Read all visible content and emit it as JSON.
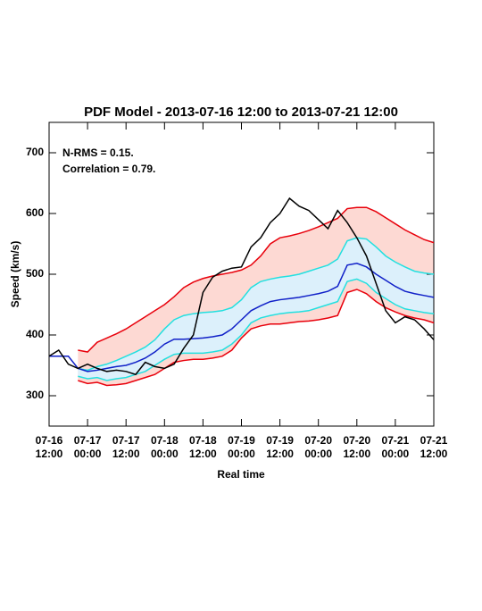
{
  "chart_data": {
    "type": "line",
    "title": "PDF Model - 2013-07-16 12:00 to 2013-07-21 12:00",
    "y_label": "Speed (km/s)",
    "x_label": "Real time",
    "annotations": [
      "N-RMS = 0.15.",
      "Correlation = 0.79."
    ],
    "x": [
      0,
      3,
      6,
      9,
      12,
      15,
      18,
      21,
      24,
      27,
      30,
      33,
      36,
      39,
      42,
      45,
      48,
      51,
      54,
      57,
      60,
      63,
      66,
      69,
      72,
      75,
      78,
      81,
      84,
      87,
      90,
      93,
      96,
      99,
      102,
      105,
      108,
      111,
      114,
      117,
      120
    ],
    "xlim": [
      0,
      120
    ],
    "xticks": [
      {
        "value": 0,
        "label": "07-16 12:00"
      },
      {
        "value": 12,
        "label": "07-17 00:00"
      },
      {
        "value": 24,
        "label": "07-17 12:00"
      },
      {
        "value": 36,
        "label": "07-18 00:00"
      },
      {
        "value": 48,
        "label": "07-18 12:00"
      },
      {
        "value": 60,
        "label": "07-19 00:00"
      },
      {
        "value": 72,
        "label": "07-19 12:00"
      },
      {
        "value": 84,
        "label": "07-20 00:00"
      },
      {
        "value": 96,
        "label": "07-20 12:00"
      },
      {
        "value": 108,
        "label": "07-21 00:00"
      },
      {
        "value": 120,
        "label": "07-21 12:00"
      }
    ],
    "ylim": [
      250,
      750
    ],
    "yticks": [
      300,
      400,
      500,
      600,
      700
    ],
    "series": [
      {
        "color": "#e8000b",
        "fill": "#fdd9d3",
        "values": [
          null,
          null,
          null,
          375,
          372,
          388,
          395,
          402,
          410,
          420,
          430,
          440,
          450,
          463,
          478,
          487,
          493,
          497,
          500,
          503,
          507,
          515,
          530,
          550,
          560,
          563,
          567,
          572,
          578,
          585,
          592,
          608,
          610,
          610,
          603,
          593,
          583,
          573,
          565,
          557,
          552
        ]
      },
      {
        "color": "#e8000b",
        "values": [
          null,
          null,
          null,
          325,
          320,
          322,
          317,
          318,
          320,
          325,
          330,
          335,
          345,
          355,
          358,
          360,
          360,
          362,
          365,
          375,
          395,
          410,
          415,
          418,
          418,
          420,
          422,
          423,
          425,
          428,
          432,
          470,
          475,
          468,
          455,
          445,
          438,
          432,
          428,
          425,
          420
        ]
      },
      {
        "color": "#22e0e0",
        "fill": "#dcf0fb",
        "values": [
          null,
          null,
          null,
          345,
          342,
          348,
          352,
          358,
          365,
          372,
          380,
          392,
          410,
          425,
          432,
          435,
          437,
          438,
          440,
          445,
          458,
          478,
          488,
          492,
          495,
          497,
          500,
          505,
          510,
          515,
          525,
          555,
          560,
          558,
          545,
          530,
          520,
          512,
          505,
          502,
          500
        ]
      },
      {
        "color": "#22e0e0",
        "values": [
          null,
          null,
          null,
          332,
          328,
          330,
          325,
          328,
          330,
          335,
          340,
          350,
          360,
          368,
          370,
          370,
          370,
          372,
          375,
          385,
          400,
          420,
          428,
          432,
          435,
          437,
          438,
          440,
          445,
          450,
          455,
          488,
          492,
          485,
          470,
          460,
          450,
          443,
          440,
          437,
          435
        ]
      },
      {
        "color": "#1020c8",
        "values": [
          365,
          365,
          365,
          345,
          340,
          342,
          345,
          348,
          350,
          355,
          362,
          372,
          385,
          393,
          393,
          394,
          395,
          397,
          400,
          410,
          425,
          440,
          448,
          455,
          458,
          460,
          462,
          465,
          468,
          472,
          480,
          515,
          518,
          512,
          500,
          490,
          480,
          472,
          468,
          465,
          462
        ]
      },
      {
        "color": "#000000",
        "values": [
          365,
          375,
          352,
          345,
          352,
          345,
          340,
          342,
          340,
          335,
          355,
          348,
          345,
          352,
          378,
          400,
          470,
          495,
          505,
          510,
          512,
          545,
          560,
          585,
          600,
          625,
          612,
          605,
          590,
          575,
          605,
          585,
          560,
          530,
          485,
          440,
          420,
          430,
          425,
          410,
          392
        ]
      }
    ]
  }
}
